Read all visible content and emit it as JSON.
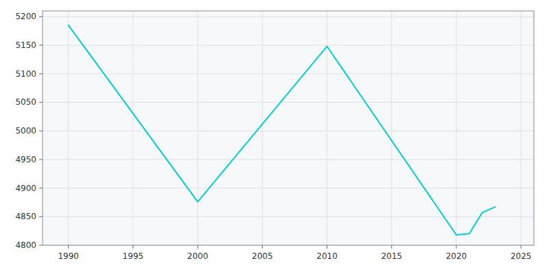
{
  "chart_data": {
    "type": "line",
    "x": [
      1990,
      2000,
      2010,
      2020,
      2021,
      2022,
      2023
    ],
    "values": [
      5185,
      4876,
      5148,
      4818,
      4820,
      4857,
      4867
    ],
    "color": "#00CED1",
    "xlim": [
      1988,
      2026
    ],
    "ylim": [
      4800,
      5210
    ],
    "xticks": [
      1990,
      1995,
      2000,
      2005,
      2010,
      2015,
      2020,
      2025
    ],
    "yticks": [
      4800,
      4850,
      4900,
      4950,
      5000,
      5050,
      5100,
      5150,
      5200
    ],
    "grid": true
  }
}
